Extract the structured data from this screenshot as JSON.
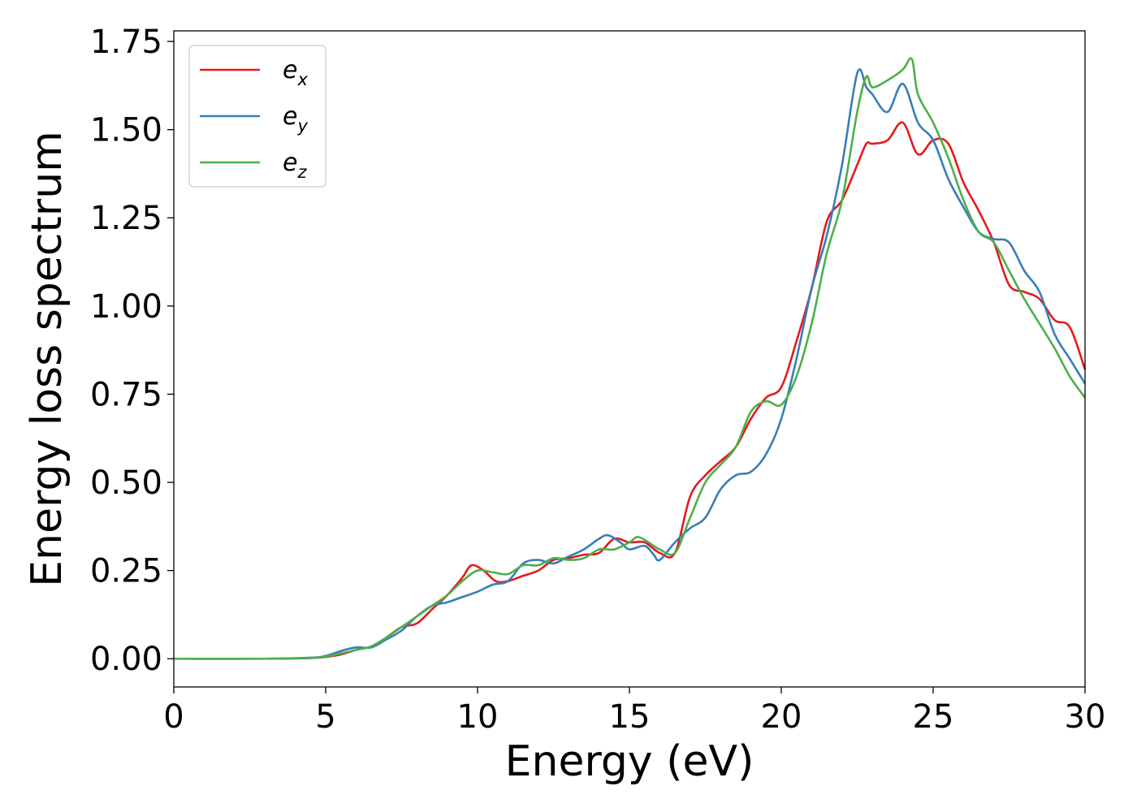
{
  "chart_data": {
    "type": "line",
    "title": "",
    "xlabel": "Energy (eV)",
    "ylabel": "Energy loss spectrum",
    "xlim": [
      0,
      30
    ],
    "ylim": [
      -0.08,
      1.78
    ],
    "xticks": [
      0,
      5,
      10,
      15,
      20,
      25,
      30
    ],
    "xtick_labels": [
      "0",
      "5",
      "10",
      "15",
      "20",
      "25",
      "30"
    ],
    "yticks": [
      0.0,
      0.25,
      0.5,
      0.75,
      1.0,
      1.25,
      1.5,
      1.75
    ],
    "ytick_labels": [
      "0.00",
      "0.25",
      "0.50",
      "0.75",
      "1.00",
      "1.25",
      "1.50",
      "1.75"
    ],
    "grid": false,
    "legend_position": "top-left",
    "series": [
      {
        "name": "e_x",
        "base": "e",
        "sub": "x",
        "color": "#e41a1c",
        "x": [
          0,
          3,
          4.5,
          5,
          5.5,
          6,
          6.5,
          7,
          7.5,
          8,
          8.5,
          9,
          9.5,
          9.8,
          10.2,
          10.6,
          11,
          11.5,
          12,
          12.5,
          13,
          13.5,
          14,
          14.5,
          15,
          15.5,
          16,
          16.5,
          17,
          17.5,
          18,
          18.5,
          19,
          19.5,
          20,
          20.5,
          21,
          21.5,
          22,
          22.5,
          22.8,
          23,
          23.5,
          24,
          24.5,
          25,
          25.5,
          26,
          26.5,
          27,
          27.5,
          28,
          28.5,
          29,
          29.5,
          30
        ],
        "y": [
          0,
          0,
          0.002,
          0.005,
          0.012,
          0.025,
          0.035,
          0.06,
          0.09,
          0.1,
          0.14,
          0.18,
          0.23,
          0.265,
          0.25,
          0.22,
          0.22,
          0.235,
          0.25,
          0.28,
          0.285,
          0.295,
          0.3,
          0.34,
          0.33,
          0.33,
          0.3,
          0.3,
          0.46,
          0.52,
          0.56,
          0.6,
          0.68,
          0.74,
          0.77,
          0.9,
          1.05,
          1.24,
          1.3,
          1.4,
          1.46,
          1.46,
          1.47,
          1.52,
          1.43,
          1.47,
          1.46,
          1.35,
          1.27,
          1.18,
          1.06,
          1.04,
          1.02,
          0.96,
          0.94,
          0.82
        ]
      },
      {
        "name": "e_y",
        "base": "e",
        "sub": "y",
        "color": "#377eb8",
        "x": [
          0,
          3,
          4.5,
          5,
          5.5,
          6,
          6.5,
          7,
          7.5,
          8,
          8.5,
          9,
          9.5,
          10,
          10.5,
          11,
          11.5,
          12,
          12.5,
          13,
          13.5,
          14,
          14.3,
          14.7,
          15,
          15.5,
          15.8,
          16,
          16.5,
          17,
          17.5,
          18,
          18.5,
          19,
          19.5,
          20,
          20.5,
          21,
          21.5,
          22,
          22.5,
          22.8,
          23,
          23.5,
          24,
          24.5,
          25,
          25.5,
          26,
          26.5,
          27,
          27.5,
          28,
          28.5,
          29,
          29.5,
          30
        ],
        "y": [
          0,
          0,
          0.003,
          0.008,
          0.022,
          0.032,
          0.032,
          0.055,
          0.08,
          0.12,
          0.15,
          0.16,
          0.175,
          0.19,
          0.21,
          0.22,
          0.27,
          0.28,
          0.27,
          0.29,
          0.31,
          0.34,
          0.35,
          0.33,
          0.31,
          0.32,
          0.295,
          0.28,
          0.33,
          0.37,
          0.4,
          0.48,
          0.52,
          0.53,
          0.58,
          0.68,
          0.85,
          1.05,
          1.2,
          1.4,
          1.66,
          1.62,
          1.6,
          1.55,
          1.63,
          1.52,
          1.47,
          1.36,
          1.28,
          1.21,
          1.19,
          1.18,
          1.1,
          1.04,
          0.92,
          0.85,
          0.78
        ]
      },
      {
        "name": "e_z",
        "base": "e",
        "sub": "z",
        "color": "#4daf4a",
        "x": [
          0,
          3,
          4.5,
          5,
          5.5,
          6,
          6.5,
          7,
          7.5,
          8,
          8.5,
          9,
          9.5,
          10,
          10.5,
          11,
          11.5,
          12,
          12.5,
          13,
          13.5,
          14,
          14.5,
          15,
          15.3,
          15.8,
          16,
          16.5,
          17,
          17.5,
          18,
          18.5,
          19,
          19.5,
          20,
          20.5,
          21,
          21.5,
          22,
          22.5,
          22.8,
          23,
          23.5,
          24,
          24.3,
          24.5,
          25,
          25.5,
          26,
          26.5,
          27,
          27.5,
          28,
          28.5,
          29,
          29.5,
          30
        ],
        "y": [
          0,
          0,
          0.002,
          0.006,
          0.015,
          0.025,
          0.035,
          0.06,
          0.09,
          0.12,
          0.15,
          0.18,
          0.22,
          0.25,
          0.245,
          0.24,
          0.265,
          0.265,
          0.285,
          0.28,
          0.285,
          0.31,
          0.31,
          0.33,
          0.345,
          0.32,
          0.31,
          0.3,
          0.4,
          0.5,
          0.55,
          0.6,
          0.7,
          0.73,
          0.72,
          0.8,
          0.95,
          1.15,
          1.3,
          1.55,
          1.65,
          1.62,
          1.64,
          1.67,
          1.7,
          1.6,
          1.52,
          1.42,
          1.3,
          1.21,
          1.18,
          1.1,
          1.02,
          0.95,
          0.88,
          0.8,
          0.74
        ]
      }
    ]
  }
}
